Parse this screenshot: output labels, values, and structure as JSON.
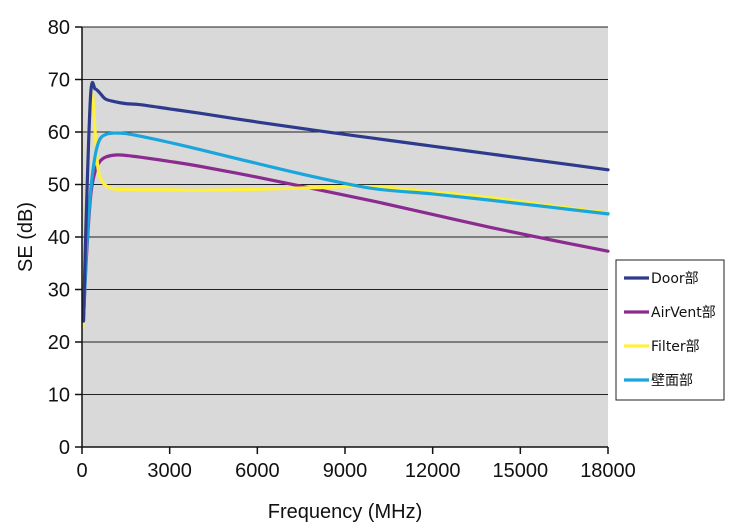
{
  "chart_data": {
    "type": "line",
    "xlabel": "Frequency (MHz)",
    "ylabel": "SE (dB)",
    "xlim": [
      0,
      18000
    ],
    "ylim": [
      0,
      80
    ],
    "xticks": [
      0,
      3000,
      6000,
      9000,
      12000,
      15000,
      18000
    ],
    "yticks": [
      0,
      10,
      20,
      30,
      40,
      50,
      60,
      70,
      80
    ],
    "grid": "horizontal",
    "legend_position": "right",
    "plot_background": "#d9d9d9",
    "series": [
      {
        "name": "Door部",
        "color": "#2e3a8c",
        "x": [
          50,
          150,
          300,
          450,
          600,
          800,
          1100,
          1500,
          2000,
          3000,
          4000,
          6000,
          8000,
          10000,
          12000,
          14000,
          16000,
          18000
        ],
        "y": [
          24,
          45,
          67.5,
          68.2,
          67.5,
          66.3,
          65.8,
          65.4,
          65.2,
          64.4,
          63.6,
          61.9,
          60.3,
          58.8,
          57.3,
          55.8,
          54.3,
          52.8
        ]
      },
      {
        "name": "AirVent部",
        "color": "#8b2a8f",
        "x": [
          50,
          150,
          300,
          450,
          600,
          800,
          1100,
          1400,
          2000,
          3000,
          4000,
          6000,
          8000,
          10000,
          12000,
          14000,
          16000,
          18000
        ],
        "y": [
          24,
          36,
          48,
          52.5,
          54.3,
          55.2,
          55.6,
          55.6,
          55.2,
          54.4,
          53.5,
          51.4,
          49.1,
          46.8,
          44.3,
          41.8,
          39.5,
          37.3
        ]
      },
      {
        "name": "Filter部",
        "color": "#fff03c",
        "x": [
          30,
          120,
          250,
          350,
          450,
          550,
          700,
          900,
          1200,
          2000,
          3000,
          4000,
          6000,
          8000,
          10000,
          12000,
          14000,
          16000,
          18000
        ],
        "y": [
          23,
          40,
          62,
          67.5,
          60,
          53,
          50.5,
          49.5,
          49.1,
          49.0,
          49.0,
          48.9,
          49.1,
          49.4,
          49.6,
          48.6,
          47.5,
          46.0,
          44.6
        ]
      },
      {
        "name": "壁面部",
        "color": "#1aa6dc",
        "x": [
          50,
          150,
          300,
          450,
          600,
          800,
          1100,
          1500,
          2000,
          3000,
          4000,
          6000,
          8000,
          10000,
          12000,
          14000,
          16000,
          18000
        ],
        "y": [
          24,
          37,
          49,
          55.5,
          58.5,
          59.5,
          59.8,
          59.7,
          59.2,
          58.0,
          56.7,
          54.0,
          51.4,
          49.2,
          48.2,
          47.0,
          45.7,
          44.4
        ]
      }
    ]
  }
}
